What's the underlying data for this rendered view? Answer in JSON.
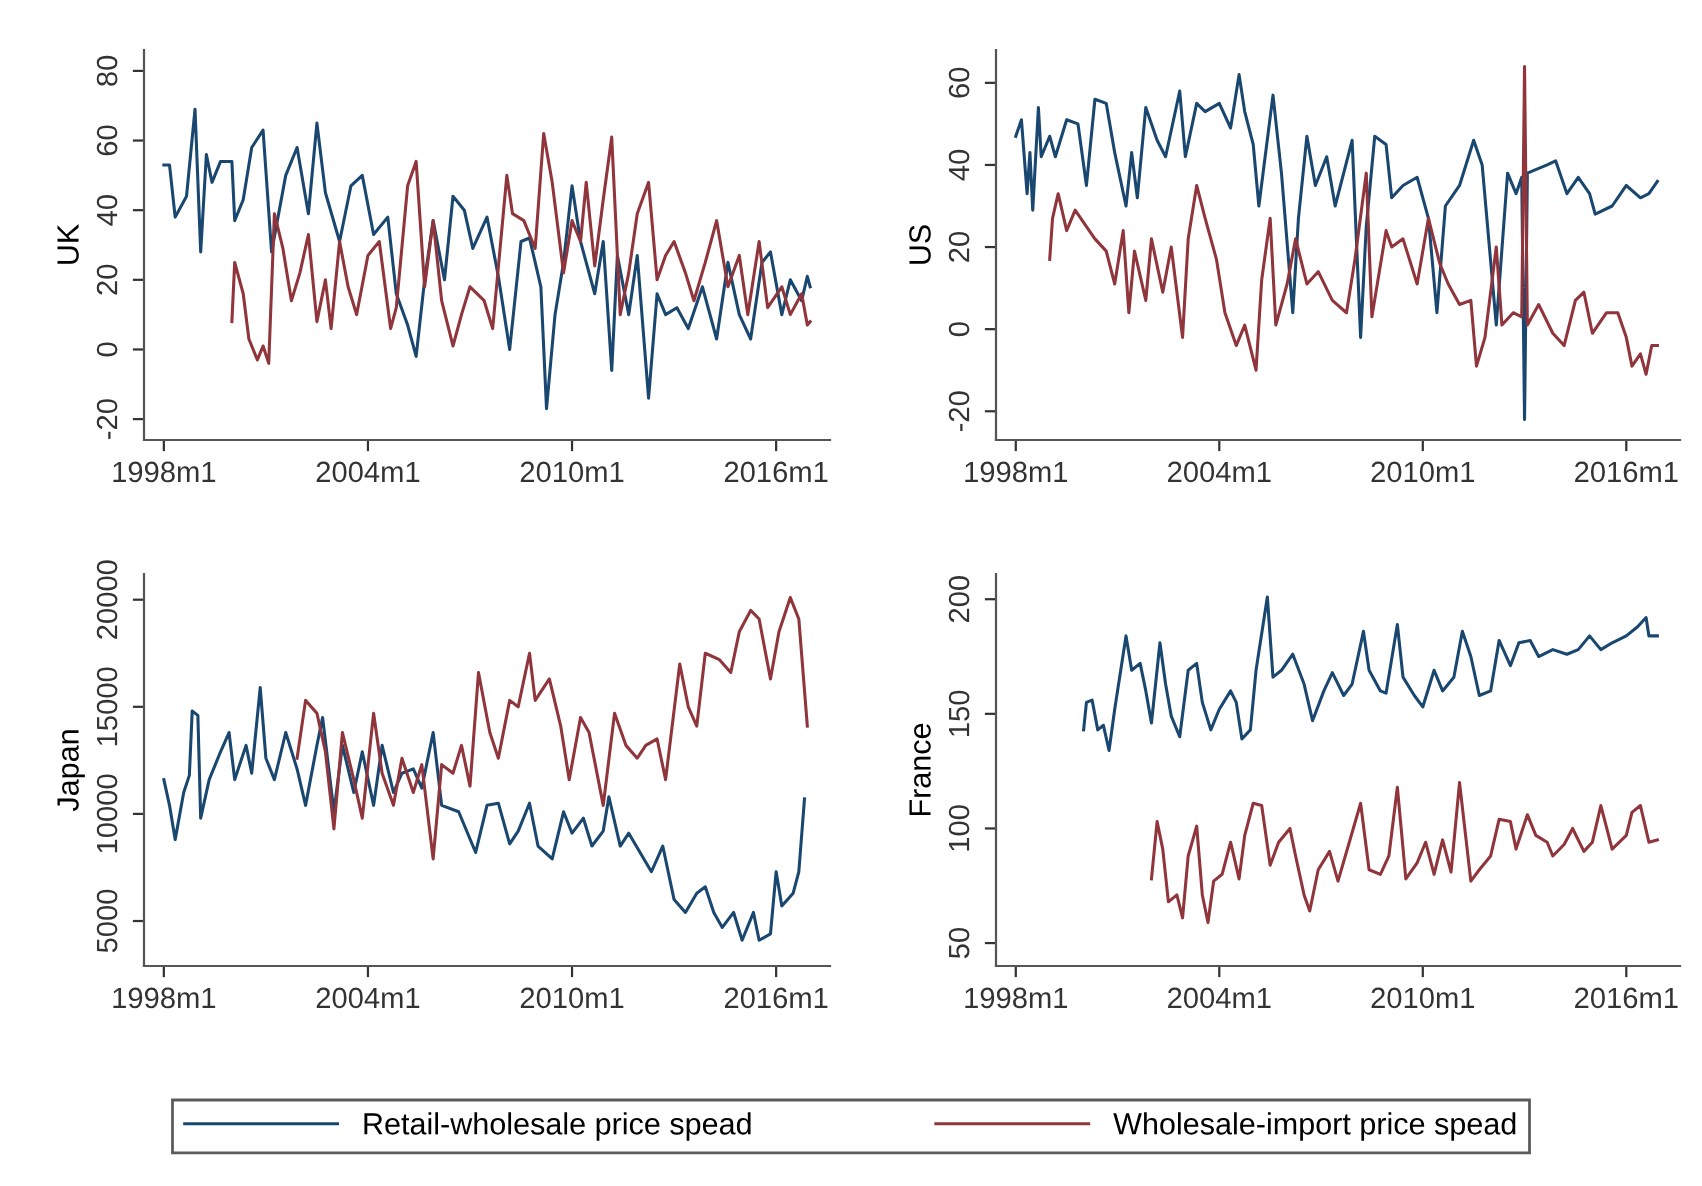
{
  "chart_data": [
    {
      "type": "line",
      "ylabel": "UK",
      "xlim": [
        "1997-06",
        "2017-08"
      ],
      "ylim": [
        -26,
        86
      ],
      "xticks": [
        {
          "value": "1998-01",
          "label": "1998m1"
        },
        {
          "value": "2004-01",
          "label": "2004m1"
        },
        {
          "value": "2010-01",
          "label": "2010m1"
        },
        {
          "value": "2016-01",
          "label": "2016m1"
        }
      ],
      "yticks": [
        -20,
        0,
        20,
        40,
        60,
        80
      ],
      "grid": false,
      "legend": "bottom",
      "series": [
        {
          "name": "Retail-wholesale price spead",
          "color": "#1a476f",
          "x": [
            "1998-01",
            "1998-03",
            "1998-05",
            "1998-09",
            "1998-12",
            "1999-02",
            "1999-04",
            "1999-06",
            "1999-09",
            "2000-01",
            "2000-02",
            "2000-05",
            "2000-08",
            "2000-12",
            "2001-03",
            "2001-08",
            "2001-12",
            "2002-04",
            "2002-07",
            "2002-10",
            "2003-03",
            "2003-07",
            "2003-11",
            "2004-03",
            "2004-08",
            "2004-11",
            "2005-03",
            "2005-06",
            "2005-09",
            "2005-12",
            "2006-04",
            "2006-07",
            "2006-11",
            "2007-02",
            "2007-07",
            "2007-11",
            "2008-03",
            "2008-07",
            "2008-10",
            "2009-02",
            "2009-04",
            "2009-07",
            "2009-10",
            "2010-01",
            "2010-04",
            "2010-09",
            "2010-12",
            "2011-03",
            "2011-05",
            "2011-09",
            "2011-12",
            "2012-04",
            "2012-07",
            "2012-10",
            "2013-02",
            "2013-06",
            "2013-11",
            "2014-04",
            "2014-08",
            "2014-12",
            "2015-04",
            "2015-08",
            "2015-11",
            "2016-03",
            "2016-06",
            "2016-10",
            "2016-12",
            "2017-01"
          ],
          "values": [
            53,
            53,
            38,
            44,
            69,
            28,
            56,
            48,
            54,
            54,
            37,
            43,
            58,
            63,
            28,
            50,
            58,
            39,
            65,
            45,
            31,
            47,
            50,
            33,
            38,
            16,
            7,
            -2,
            20,
            37,
            20,
            44,
            40,
            29,
            38,
            21,
            0,
            31,
            32,
            18,
            -17,
            10,
            25,
            47,
            31,
            16,
            31,
            -6,
            27,
            10,
            27,
            -14,
            16,
            10,
            12,
            6,
            18,
            3,
            25,
            10,
            3,
            25,
            28,
            10,
            20,
            14,
            21,
            18
          ]
        },
        {
          "name": "Wholesale-import price spead",
          "color": "#90353b",
          "x": [
            "2000-01",
            "2000-02",
            "2000-05",
            "2000-07",
            "2000-10",
            "2000-12",
            "2001-02",
            "2001-04",
            "2001-07",
            "2001-10",
            "2002-01",
            "2002-04",
            "2002-07",
            "2002-10",
            "2002-12",
            "2003-03",
            "2003-06",
            "2003-09",
            "2004-01",
            "2004-05",
            "2004-09",
            "2004-11",
            "2005-03",
            "2005-06",
            "2005-09",
            "2005-12",
            "2006-03",
            "2006-07",
            "2006-10",
            "2007-01",
            "2007-06",
            "2007-09",
            "2008-02",
            "2008-04",
            "2008-08",
            "2008-12",
            "2009-03",
            "2009-06",
            "2009-10",
            "2010-01",
            "2010-04",
            "2010-06",
            "2010-09",
            "2010-12",
            "2011-03",
            "2011-06",
            "2011-09",
            "2011-12",
            "2012-04",
            "2012-07",
            "2012-10",
            "2013-01",
            "2013-05",
            "2013-08",
            "2013-12",
            "2014-04",
            "2014-08",
            "2014-12",
            "2015-03",
            "2015-07",
            "2015-10",
            "2016-03",
            "2016-06",
            "2016-10",
            "2016-12",
            "2017-01"
          ],
          "values": [
            8,
            25,
            16,
            3,
            -3,
            1,
            -4,
            39,
            29,
            14,
            22,
            33,
            8,
            20,
            6,
            31,
            18,
            10,
            27,
            31,
            6,
            12,
            47,
            54,
            18,
            37,
            14,
            1,
            10,
            18,
            14,
            6,
            50,
            39,
            37,
            29,
            62,
            48,
            22,
            37,
            31,
            48,
            24,
            43,
            61,
            10,
            22,
            39,
            48,
            20,
            27,
            31,
            22,
            14,
            25,
            37,
            18,
            27,
            10,
            31,
            12,
            18,
            10,
            16,
            7,
            8
          ]
        }
      ]
    },
    {
      "type": "line",
      "ylabel": "US",
      "xlim": [
        "1997-06",
        "2017-08"
      ],
      "ylim": [
        -27,
        68
      ],
      "xticks": [
        {
          "value": "1998-01",
          "label": "1998m1"
        },
        {
          "value": "2004-01",
          "label": "2004m1"
        },
        {
          "value": "2010-01",
          "label": "2010m1"
        },
        {
          "value": "2016-01",
          "label": "2016m1"
        }
      ],
      "yticks": [
        -20,
        0,
        20,
        40,
        60
      ],
      "grid": false,
      "legend": "bottom",
      "series": [
        {
          "name": "Retail-wholesale price spead",
          "color": "#1a476f",
          "x": [
            "1998-01",
            "1998-03",
            "1998-05",
            "1998-06",
            "1998-07",
            "1998-09",
            "1998-10",
            "1999-01",
            "1999-03",
            "1999-07",
            "1999-11",
            "2000-02",
            "2000-05",
            "2000-09",
            "2000-12",
            "2001-04",
            "2001-06",
            "2001-08",
            "2001-11",
            "2002-03",
            "2002-06",
            "2002-11",
            "2003-01",
            "2003-05",
            "2003-08",
            "2004-01",
            "2004-05",
            "2004-08",
            "2004-10",
            "2005-01",
            "2005-03",
            "2005-08",
            "2005-11",
            "2006-03",
            "2006-05",
            "2006-08",
            "2006-11",
            "2007-03",
            "2007-06",
            "2007-12",
            "2008-03",
            "2008-05",
            "2008-08",
            "2008-12",
            "2009-02",
            "2009-06",
            "2009-11",
            "2010-03",
            "2010-06",
            "2010-09",
            "2011-02",
            "2011-07",
            "2011-10",
            "2012-03",
            "2012-07",
            "2012-10",
            "2012-12",
            "2013-01",
            "2013-02",
            "2013-09",
            "2013-12",
            "2014-04",
            "2014-08",
            "2014-12",
            "2015-02",
            "2015-08",
            "2016-01",
            "2016-06",
            "2016-09",
            "2016-12"
          ],
          "values": [
            47,
            51,
            33,
            43,
            29,
            54,
            42,
            47,
            42,
            51,
            50,
            35,
            56,
            55,
            43,
            30,
            43,
            32,
            54,
            46,
            42,
            58,
            42,
            55,
            53,
            55,
            49,
            62,
            53,
            45,
            30,
            57,
            38,
            4,
            27,
            47,
            35,
            42,
            30,
            46,
            -2,
            25,
            47,
            45,
            32,
            35,
            37,
            27,
            4,
            30,
            35,
            46,
            40,
            1,
            38,
            33,
            37,
            -22,
            38,
            40,
            41,
            33,
            37,
            33,
            28,
            30,
            35,
            32,
            33,
            36
          ]
        },
        {
          "name": "Wholesale-import price spead",
          "color": "#90353b",
          "x": [
            "1999-01",
            "1999-02",
            "1999-04",
            "1999-07",
            "1999-10",
            "2000-02",
            "2000-05",
            "2000-09",
            "2000-12",
            "2001-03",
            "2001-05",
            "2001-07",
            "2001-11",
            "2002-01",
            "2002-05",
            "2002-08",
            "2002-12",
            "2003-02",
            "2003-05",
            "2003-08",
            "2003-12",
            "2004-03",
            "2004-07",
            "2004-10",
            "2005-02",
            "2005-04",
            "2005-07",
            "2005-09",
            "2006-01",
            "2006-04",
            "2006-08",
            "2006-12",
            "2007-05",
            "2007-10",
            "2008-01",
            "2008-05",
            "2008-07",
            "2008-12",
            "2009-02",
            "2009-06",
            "2009-11",
            "2010-03",
            "2010-07",
            "2010-10",
            "2011-02",
            "2011-06",
            "2011-08",
            "2011-11",
            "2012-03",
            "2012-05",
            "2012-09",
            "2012-12",
            "2013-01",
            "2013-02",
            "2013-06",
            "2013-11",
            "2014-03",
            "2014-07",
            "2014-10",
            "2015-01",
            "2015-06",
            "2015-10",
            "2016-01",
            "2016-03",
            "2016-06",
            "2016-08",
            "2016-10",
            "2016-12"
          ],
          "values": [
            17,
            27,
            33,
            24,
            29,
            25,
            22,
            19,
            11,
            24,
            4,
            19,
            7,
            22,
            9,
            20,
            -2,
            22,
            35,
            27,
            17,
            4,
            -4,
            1,
            -10,
            12,
            27,
            1,
            11,
            22,
            11,
            14,
            7,
            4,
            17,
            38,
            3,
            24,
            20,
            22,
            11,
            27,
            16,
            11,
            6,
            7,
            -9,
            -2,
            20,
            1,
            4,
            3,
            64,
            1,
            6,
            -1,
            -4,
            7,
            9,
            -1,
            4,
            4,
            -2,
            -9,
            -6,
            -11,
            -4,
            -4
          ]
        }
      ]
    },
    {
      "type": "line",
      "ylabel": "Japan",
      "xlim": [
        "1997-06",
        "2017-08"
      ],
      "ylim": [
        2900,
        21200
      ],
      "xticks": [
        {
          "value": "1998-01",
          "label": "1998m1"
        },
        {
          "value": "2004-01",
          "label": "2004m1"
        },
        {
          "value": "2010-01",
          "label": "2010m1"
        },
        {
          "value": "2016-01",
          "label": "2016m1"
        }
      ],
      "yticks": [
        5000,
        10000,
        15000,
        20000
      ],
      "grid": false,
      "legend": "bottom",
      "series": [
        {
          "name": "Retail-wholesale price spead",
          "color": "#1a476f",
          "x": [
            "1998-01",
            "1998-03",
            "1998-05",
            "1998-08",
            "1998-10",
            "1998-11",
            "1999-01",
            "1999-02",
            "1999-05",
            "1999-09",
            "1999-12",
            "2000-02",
            "2000-06",
            "2000-08",
            "2000-11",
            "2001-01",
            "2001-04",
            "2001-08",
            "2001-12",
            "2002-03",
            "2002-07",
            "2002-09",
            "2003-01",
            "2003-04",
            "2003-08",
            "2003-11",
            "2004-03",
            "2004-06",
            "2004-10",
            "2005-01",
            "2005-05",
            "2005-08",
            "2005-12",
            "2006-03",
            "2006-09",
            "2007-03",
            "2007-07",
            "2007-11",
            "2008-03",
            "2008-06",
            "2008-10",
            "2009-01",
            "2009-06",
            "2009-10",
            "2010-01",
            "2010-05",
            "2010-08",
            "2010-12",
            "2011-02",
            "2011-06",
            "2011-09",
            "2012-01",
            "2012-05",
            "2012-09",
            "2013-01",
            "2013-05",
            "2013-09",
            "2013-12",
            "2014-03",
            "2014-06",
            "2014-10",
            "2015-01",
            "2015-05",
            "2015-07",
            "2015-11",
            "2016-01",
            "2016-03",
            "2016-07",
            "2016-09",
            "2016-11"
          ],
          "values": [
            11600,
            10400,
            8800,
            11000,
            11800,
            14800,
            14600,
            9800,
            11600,
            12900,
            13800,
            11600,
            13200,
            11900,
            15900,
            12600,
            11600,
            13800,
            12100,
            10400,
            13200,
            14500,
            10100,
            13200,
            11000,
            12900,
            10400,
            13200,
            11000,
            11900,
            12100,
            11200,
            13800,
            10400,
            10100,
            8200,
            10400,
            10500,
            8600,
            9200,
            10500,
            8500,
            7900,
            10100,
            9100,
            9800,
            8500,
            9200,
            10800,
            8500,
            9100,
            8200,
            7300,
            8500,
            6000,
            5400,
            6300,
            6600,
            5400,
            4700,
            5400,
            4100,
            5400,
            4100,
            4400,
            7300,
            5700,
            6300,
            7300,
            10700
          ]
        },
        {
          "name": "Wholesale-import price spead",
          "color": "#90353b",
          "x": [
            "2001-12",
            "2002-03",
            "2002-07",
            "2002-10",
            "2003-01",
            "2003-04",
            "2003-08",
            "2003-11",
            "2004-03",
            "2004-06",
            "2004-10",
            "2005-01",
            "2005-05",
            "2005-08",
            "2005-12",
            "2006-03",
            "2006-07",
            "2006-10",
            "2007-01",
            "2007-04",
            "2007-08",
            "2007-11",
            "2008-03",
            "2008-06",
            "2008-10",
            "2008-12",
            "2009-05",
            "2009-09",
            "2009-12",
            "2010-04",
            "2010-07",
            "2010-12",
            "2011-04",
            "2011-08",
            "2011-12",
            "2012-03",
            "2012-07",
            "2012-10",
            "2013-03",
            "2013-06",
            "2013-09",
            "2013-12",
            "2014-05",
            "2014-09",
            "2014-12",
            "2015-04",
            "2015-07",
            "2015-11",
            "2016-02",
            "2016-06",
            "2016-09",
            "2016-12"
          ],
          "values": [
            12600,
            15300,
            14700,
            12900,
            9300,
            13800,
            11600,
            9800,
            14700,
            11900,
            10400,
            12600,
            11000,
            12300,
            7900,
            12300,
            11900,
            13200,
            11300,
            16600,
            13800,
            12600,
            15300,
            15000,
            17500,
            15300,
            16300,
            14100,
            11600,
            14500,
            13800,
            10400,
            14700,
            13200,
            12600,
            13200,
            13500,
            11600,
            17000,
            15000,
            14100,
            17500,
            17200,
            16600,
            18500,
            19500,
            19100,
            16300,
            18500,
            20100,
            19100,
            14100
          ]
        }
      ]
    },
    {
      "type": "line",
      "ylabel": "France",
      "xlim": [
        "1997-06",
        "2017-08"
      ],
      "ylim": [
        40,
        211
      ],
      "xticks": [
        {
          "value": "1998-01",
          "label": "1998m1"
        },
        {
          "value": "2004-01",
          "label": "2004m1"
        },
        {
          "value": "2010-01",
          "label": "2010m1"
        },
        {
          "value": "2016-01",
          "label": "2016m1"
        }
      ],
      "yticks": [
        50,
        100,
        150,
        200
      ],
      "grid": false,
      "legend": "bottom",
      "series": [
        {
          "name": "Retail-wholesale price spead",
          "color": "#1a476f",
          "x": [
            "2000-01",
            "2000-02",
            "2000-04",
            "2000-06",
            "2000-08",
            "2000-10",
            "2000-12",
            "2001-04",
            "2001-06",
            "2001-09",
            "2001-11",
            "2002-01",
            "2002-04",
            "2002-06",
            "2002-08",
            "2002-11",
            "2003-02",
            "2003-05",
            "2003-07",
            "2003-10",
            "2004-01",
            "2004-05",
            "2004-07",
            "2004-09",
            "2004-12",
            "2005-02",
            "2005-06",
            "2005-08",
            "2005-11",
            "2006-03",
            "2006-07",
            "2006-10",
            "2007-02",
            "2007-05",
            "2007-09",
            "2007-12",
            "2008-04",
            "2008-06",
            "2008-10",
            "2008-12",
            "2009-04",
            "2009-06",
            "2009-10",
            "2010-01",
            "2010-05",
            "2010-08",
            "2010-12",
            "2011-03",
            "2011-06",
            "2011-09",
            "2012-01",
            "2012-04",
            "2012-08",
            "2012-11",
            "2013-03",
            "2013-06",
            "2013-11",
            "2014-04",
            "2014-08",
            "2014-12",
            "2015-04",
            "2015-08",
            "2016-01",
            "2016-05",
            "2016-08",
            "2016-09",
            "2016-12"
          ],
          "values": [
            143,
            155,
            156,
            143,
            145,
            134,
            152,
            184,
            169,
            172,
            160,
            146,
            181,
            163,
            149,
            140,
            169,
            172,
            155,
            143,
            152,
            160,
            155,
            139,
            143,
            169,
            201,
            166,
            169,
            176,
            163,
            147,
            160,
            168,
            158,
            163,
            186,
            169,
            160,
            159,
            189,
            166,
            158,
            153,
            169,
            160,
            166,
            186,
            175,
            158,
            160,
            182,
            171,
            181,
            182,
            175,
            178,
            176,
            178,
            184,
            178,
            181,
            184,
            188,
            192,
            184,
            184
          ]
        },
        {
          "name": "Wholesale-import price spead",
          "color": "#90353b",
          "x": [
            "2002-01",
            "2002-03",
            "2002-05",
            "2002-07",
            "2002-10",
            "2002-12",
            "2003-02",
            "2003-05",
            "2003-07",
            "2003-09",
            "2003-11",
            "2004-02",
            "2004-05",
            "2004-08",
            "2004-10",
            "2005-01",
            "2005-04",
            "2005-07",
            "2005-10",
            "2006-02",
            "2006-04",
            "2006-07",
            "2006-09",
            "2006-12",
            "2007-04",
            "2007-07",
            "2007-11",
            "2008-03",
            "2008-06",
            "2008-10",
            "2009-01",
            "2009-04",
            "2009-07",
            "2009-11",
            "2010-02",
            "2010-05",
            "2010-08",
            "2010-11",
            "2011-02",
            "2011-06",
            "2011-09",
            "2012-01",
            "2012-04",
            "2012-08",
            "2012-10",
            "2013-02",
            "2013-05",
            "2013-09",
            "2013-11",
            "2014-03",
            "2014-06",
            "2014-10",
            "2015-01",
            "2015-04",
            "2015-08",
            "2016-01",
            "2016-03",
            "2016-06",
            "2016-09",
            "2016-12"
          ],
          "values": [
            78,
            103,
            91,
            68,
            71,
            61,
            88,
            101,
            71,
            59,
            77,
            80,
            94,
            78,
            97,
            111,
            110,
            84,
            94,
            100,
            88,
            71,
            64,
            82,
            90,
            77,
            94,
            111,
            82,
            80,
            88,
            118,
            78,
            85,
            94,
            80,
            95,
            81,
            120,
            77,
            82,
            88,
            104,
            103,
            91,
            106,
            97,
            94,
            88,
            93,
            100,
            90,
            94,
            110,
            91,
            97,
            107,
            110,
            94,
            95
          ]
        }
      ]
    }
  ]
}
